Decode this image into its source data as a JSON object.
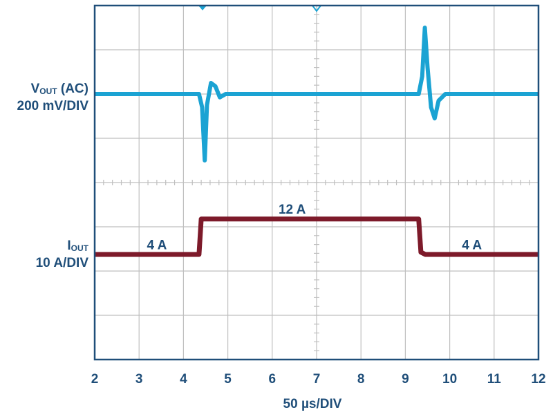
{
  "chart_data": {
    "type": "line",
    "xlabel": "50 µs/DIV",
    "x_ticks": [
      "2",
      "3",
      "4",
      "5",
      "6",
      "7",
      "8",
      "9",
      "10",
      "11",
      "12"
    ],
    "xlim": [
      2,
      12
    ],
    "grid": true,
    "colors": {
      "vout": "#1ba3d3",
      "iout": "#7d1a2a",
      "grid": "#bfbfbf",
      "frame": "#1f4e79",
      "text": "#1f4e79"
    },
    "channels": {
      "vout": {
        "name": "V",
        "subscript": "OUT",
        "suffix": " (AC)",
        "scale": "200 mV/DIV"
      },
      "iout": {
        "name": "I",
        "subscript": "OUT",
        "scale": "10 A/DIV"
      }
    },
    "series": [
      {
        "name": "VOUT (AC)",
        "unit": "mV",
        "x": [
          2,
          4.35,
          4.42,
          4.48,
          4.53,
          4.62,
          4.72,
          4.82,
          4.95,
          9.3,
          9.38,
          9.44,
          9.5,
          9.58,
          9.66,
          9.75,
          9.9,
          12
        ],
        "y": [
          0,
          0,
          -60,
          -300,
          -50,
          50,
          35,
          -15,
          0,
          0,
          80,
          300,
          120,
          -60,
          -110,
          -30,
          0,
          0
        ]
      },
      {
        "name": "IOUT",
        "unit": "A",
        "x": [
          2,
          4.35,
          4.4,
          9.3,
          9.35,
          9.45,
          12
        ],
        "y": [
          4,
          4,
          12,
          12,
          4.5,
          4,
          4
        ]
      }
    ],
    "annotations": [
      {
        "text": "4 A",
        "x": 3.4,
        "y": 5.2
      },
      {
        "text": "12 A",
        "x": 6.45,
        "y": 13.2
      },
      {
        "text": "4 A",
        "x": 10.5,
        "y": 5.2
      }
    ]
  }
}
